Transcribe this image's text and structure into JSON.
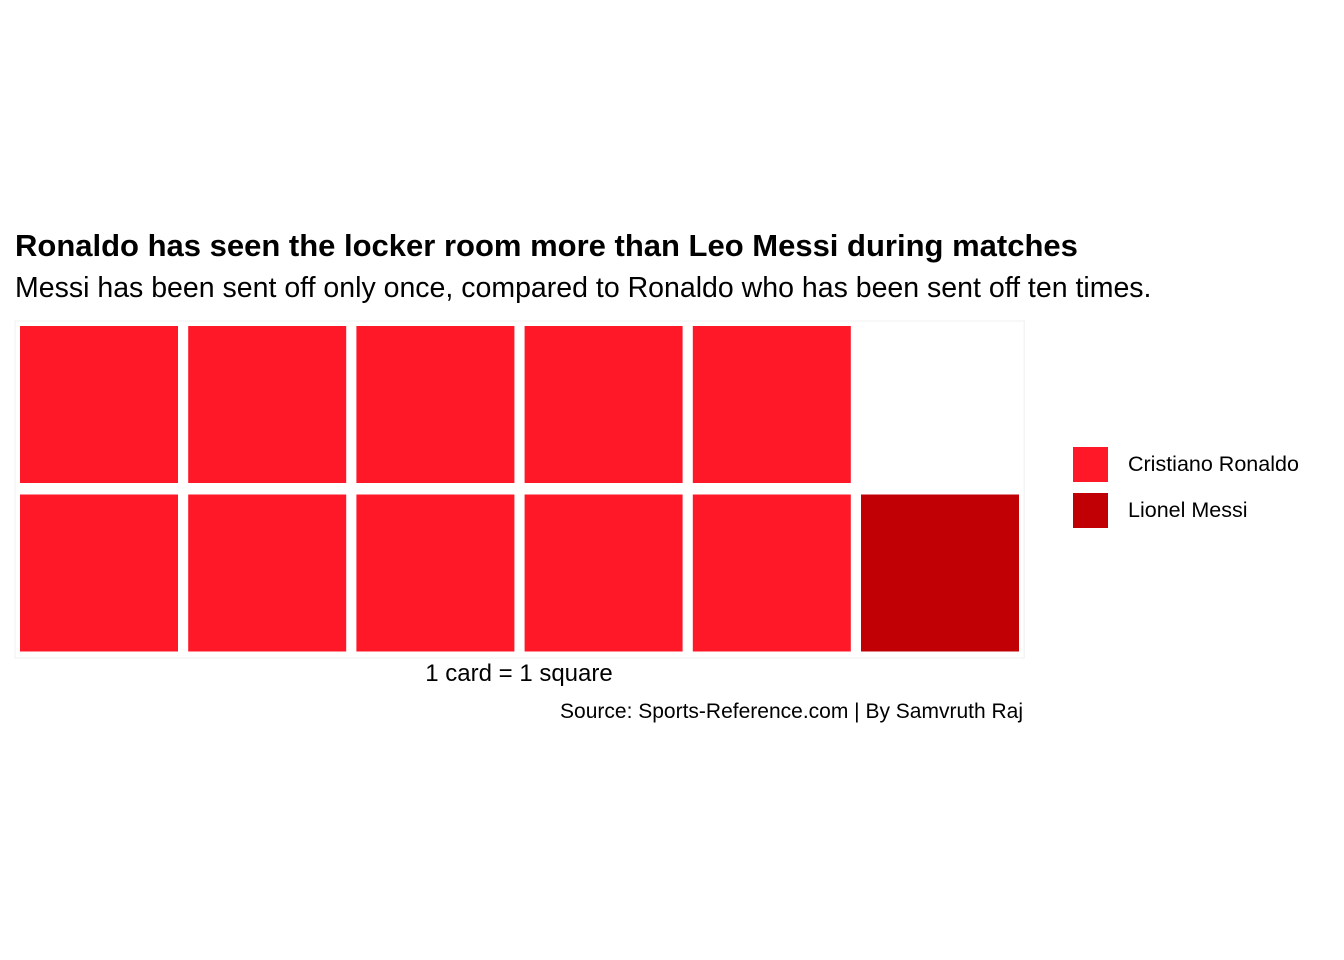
{
  "chart_data": {
    "type": "waffle",
    "title": "Ronaldo has seen the locker room more than Leo Messi during matches",
    "subtitle": "Messi has been sent off only once, compared to Ronaldo who has been sent off ten times.",
    "xlabel": "1 card = 1 square",
    "caption": "Source: Sports-Reference.com | By Samvruth Raj",
    "rows": 2,
    "series": [
      {
        "name": "Cristiano Ronaldo",
        "value": 10,
        "color": "#FF1928"
      },
      {
        "name": "Lionel Messi",
        "value": 1,
        "color": "#C00005"
      }
    ],
    "legend_position": "right"
  }
}
